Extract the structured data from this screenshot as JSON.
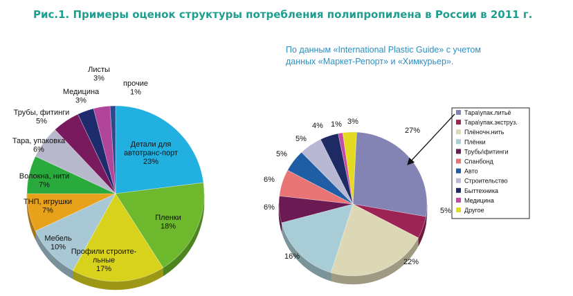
{
  "title": "Рис.1. Примеры оценок структуры потребления полипропилена в России в 2011 г.",
  "source_line1": "По данным «International Plastic Guide» с учетом",
  "source_line2": "данных «Маркет-Репорт» и «Химкурьер».",
  "chart_data": [
    {
      "type": "pie",
      "title": "",
      "slices": [
        {
          "label": [
            "Детали для",
            "автотранс-порт"
          ],
          "pct": "23%",
          "value": 23,
          "color": "#22b0e0"
        },
        {
          "label": [
            "Пленки"
          ],
          "pct": "18%",
          "value": 18,
          "color": "#6db82c"
        },
        {
          "label": [
            "Профили строите-",
            "льные"
          ],
          "pct": "17%",
          "value": 17,
          "color": "#d9d21c"
        },
        {
          "label": [
            "Мебель"
          ],
          "pct": "10%",
          "value": 10,
          "color": "#a9c8d6"
        },
        {
          "label": [
            "ТНП, игрушки"
          ],
          "pct": "7%",
          "value": 7,
          "color": "#e8a11a"
        },
        {
          "label": [
            "Волокна, нити"
          ],
          "pct": "7%",
          "value": 7,
          "color": "#2aaa3c"
        },
        {
          "label": [
            "Тара, упаковка"
          ],
          "pct": "6%",
          "value": 6,
          "color": "#b8b8cc"
        },
        {
          "label": [
            "Трубы, фитинги"
          ],
          "pct": "5%",
          "value": 5,
          "color": "#7a1a5e"
        },
        {
          "label": [
            "Медицина"
          ],
          "pct": "3%",
          "value": 3,
          "color": "#1e2c6e"
        },
        {
          "label": [
            "Листы"
          ],
          "pct": "3%",
          "value": 3,
          "color": "#b0459a"
        },
        {
          "label": [
            "прочие"
          ],
          "pct": "1%",
          "value": 1,
          "color": "#2b4a8a"
        }
      ]
    },
    {
      "type": "pie",
      "title": "",
      "legend_position": "top-right",
      "slices": [
        {
          "label": "Тара\\упак.литьё",
          "pct": "27%",
          "value": 27,
          "color": "#8484b4"
        },
        {
          "label": "Тара\\упак.экструз.",
          "pct": "5%",
          "value": 5,
          "color": "#9c2454"
        },
        {
          "label": "Плёночн.нить",
          "pct": "22%",
          "value": 22,
          "color": "#dcd7b4"
        },
        {
          "label": "Плёнки",
          "pct": "16%",
          "value": 16,
          "color": "#a9cdd6"
        },
        {
          "label": "Трубы\\фитинги",
          "pct": "6%",
          "value": 6,
          "color": "#6c1a54"
        },
        {
          "label": "Спанбонд",
          "pct": "6%",
          "value": 6,
          "color": "#e87474"
        },
        {
          "label": "Авто",
          "pct": "5%",
          "value": 5,
          "color": "#1f5ea4"
        },
        {
          "label": "Строительство",
          "pct": "5%",
          "value": 5,
          "color": "#b8b8d4"
        },
        {
          "label": "Быттехника",
          "pct": "4%",
          "value": 4,
          "color": "#1e2a64"
        },
        {
          "label": "Медицина",
          "pct": "1%",
          "value": 1,
          "color": "#c44aa8"
        },
        {
          "label": "Другое",
          "pct": "3%",
          "value": 3,
          "color": "#e4da22"
        }
      ]
    }
  ]
}
